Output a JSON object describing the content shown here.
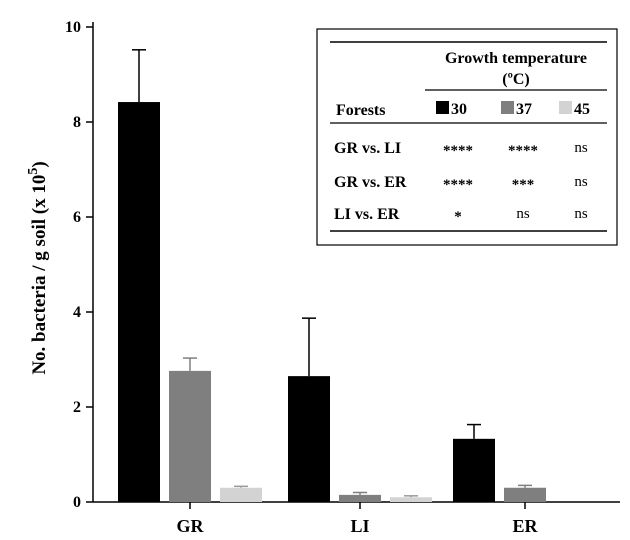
{
  "chart_data": {
    "type": "bar",
    "categories": [
      "GR",
      "LI",
      "ER"
    ],
    "series": [
      {
        "name": "30",
        "color": "#000000",
        "values": [
          8.42,
          2.65,
          1.33
        ],
        "errors": [
          1.1,
          1.22,
          0.3
        ]
      },
      {
        "name": "37",
        "color": "#7f7f7f",
        "values": [
          2.76,
          0.15,
          0.3
        ],
        "errors": [
          0.27,
          0.05,
          0.05
        ]
      },
      {
        "name": "45",
        "color": "#d3d3d3",
        "values": [
          0.3,
          0.1,
          0.0
        ],
        "errors": [
          0.03,
          0.03,
          0.0
        ]
      }
    ],
    "ylabel_main": "No. bacteria / g soil (x 10",
    "ylabel_sup": "5",
    "ylabel_end": ")",
    "ylim": [
      0,
      10
    ],
    "yticks": [
      0,
      2,
      4,
      6,
      8,
      10
    ],
    "grid": false,
    "legend_placement": "top-right",
    "legend": {
      "title_line1": "Growth temperature",
      "title_line2": "(ºC)",
      "row_header": "Forests",
      "comparisons": [
        {
          "label": "GR vs. LI",
          "marks": [
            "****",
            "****",
            "ns"
          ]
        },
        {
          "label": "GR vs. ER",
          "marks": [
            "****",
            "***",
            "ns"
          ]
        },
        {
          "label": "LI vs. ER",
          "marks": [
            "*",
            "ns",
            "ns"
          ]
        }
      ]
    }
  }
}
